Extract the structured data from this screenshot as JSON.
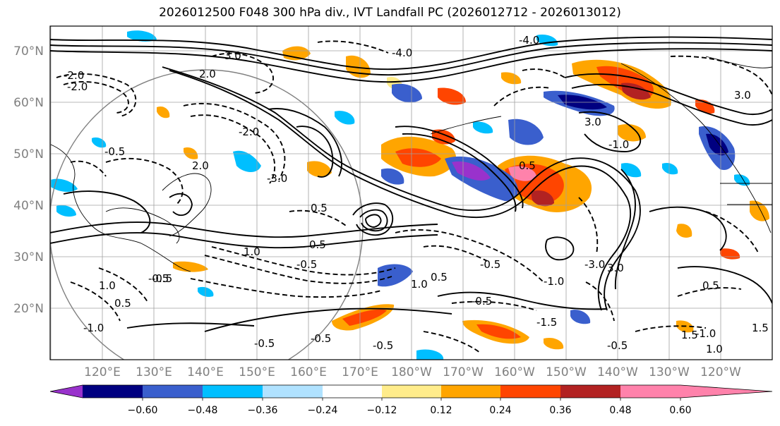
{
  "title": "2026012500 F048 300 hPa div., IVT Landfall PC (2026012712 - 2026013012)",
  "lat_labels": [
    "70°N",
    "60°N",
    "50°N",
    "40°N",
    "30°N",
    "20°N"
  ],
  "lon_labels": [
    "120°E",
    "130°E",
    "140°E",
    "150°E",
    "160°E",
    "170°E",
    "180°W",
    "170°W",
    "160°W",
    "150°W",
    "140°W",
    "130°W",
    "120°W"
  ],
  "colorbar": {
    "colors": [
      "#9932cc",
      "#000080",
      "#3a5fcd",
      "#00bfff",
      "#b0e2ff",
      "#ffffff",
      "#ffec8b",
      "#ffa500",
      "#ff4500",
      "#b22222",
      "#ff82ab"
    ],
    "tick_labels": [
      "−0.60",
      "−0.48",
      "−0.36",
      "−0.24",
      "−0.12",
      "0.12",
      "0.24",
      "0.36",
      "0.48",
      "0.60"
    ]
  },
  "contour_labels": [
    "3.0",
    "-4.0",
    "2.0",
    "-2.0",
    "-0.5",
    "-3.0",
    "-2.0",
    "1.0",
    "-0.5",
    "-0.5",
    "0.5",
    "-1.0",
    "3.0",
    "-0.5",
    "3.0",
    "-1.0",
    "-4.0",
    "-0.5",
    "-0.5",
    "0.5",
    "-0.5",
    "1.0",
    "0.5",
    "-1.5",
    "-1.0",
    "-0.5",
    "-0.5",
    "0.5",
    "1.0",
    "-0.5",
    "3.0",
    "0.5",
    "1.5",
    "1.0",
    "0.5",
    "-2.0",
    "2.0",
    "-3.0",
    "1.5",
    "-1.0"
  ]
}
